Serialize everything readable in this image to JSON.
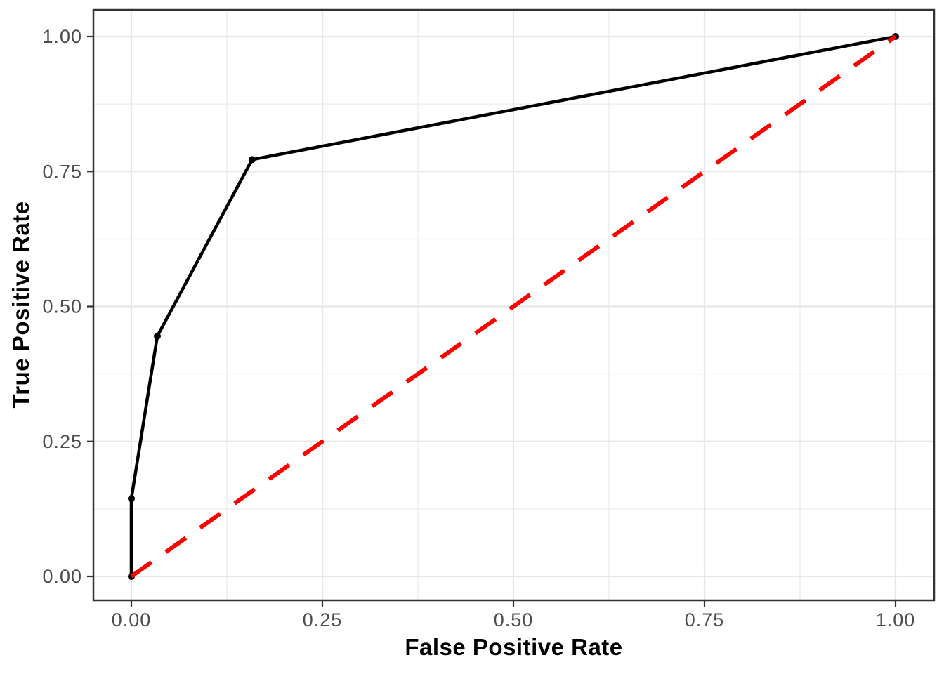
{
  "chart_data": {
    "type": "line",
    "title": "",
    "xlabel": "False Positive Rate",
    "ylabel": "True Positive Rate",
    "xlim": [
      -0.05,
      1.05
    ],
    "ylim": [
      -0.05,
      1.05
    ],
    "x_tick_values": [
      0,
      0.25,
      0.5,
      0.75,
      1
    ],
    "x_tick_labels": [
      "0.00",
      "0.25",
      "0.50",
      "0.75",
      "1.00"
    ],
    "y_tick_values": [
      0,
      0.25,
      0.5,
      0.75,
      1
    ],
    "y_tick_labels": [
      "0.00",
      "0.25",
      "0.50",
      "0.75",
      "1.00"
    ],
    "minor_tick_values": [
      0.125,
      0.375,
      0.625,
      0.875
    ],
    "grid": "major+minor",
    "legend": "none",
    "series": [
      {
        "name": "ROC curve",
        "type": "line+markers",
        "color": "#000000",
        "line_width": 4.5,
        "marker_radius": 5,
        "dash": "",
        "x": [
          0,
          0,
          0.034,
          0.158,
          1
        ],
        "y": [
          0,
          0.144,
          0.445,
          0.772,
          1
        ]
      },
      {
        "name": "chance diagonal",
        "type": "line",
        "color": "#FF0000",
        "line_width": 6,
        "marker_radius": 0,
        "dash": "35 25",
        "x": [
          0,
          1
        ],
        "y": [
          0,
          1
        ]
      }
    ],
    "colors": {
      "background": "#FFFFFF",
      "grid_major": "#E7E7E7",
      "grid_minor": "#EFEFEF",
      "panel_border": "#333333",
      "tick_mark": "#333333",
      "tick_label": "#4D4D4D",
      "axis_title": "#000000"
    }
  }
}
